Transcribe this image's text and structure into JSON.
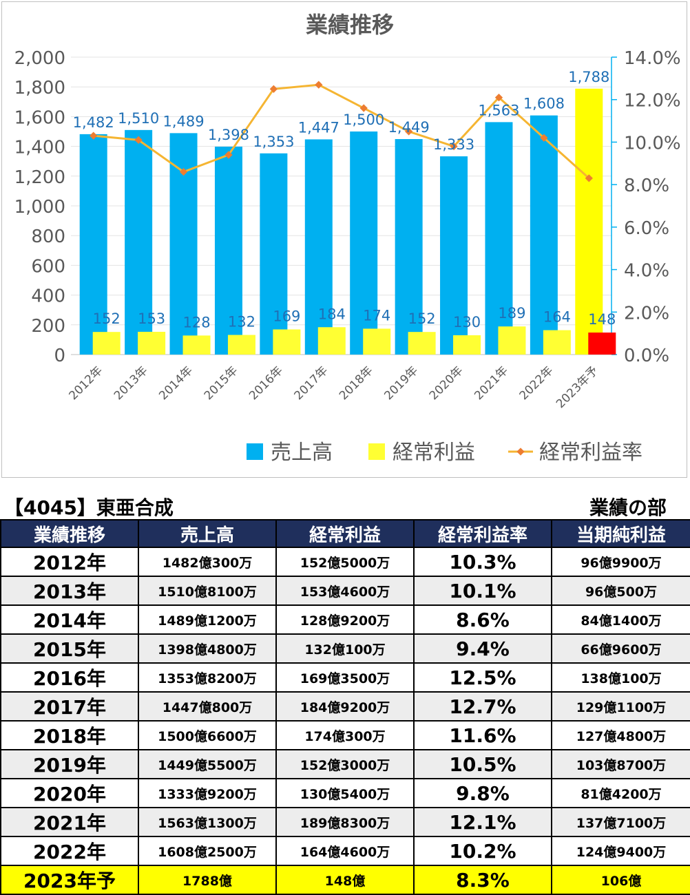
{
  "chart_data": {
    "type": "bar",
    "title": "業績推移",
    "categories": [
      "2012年",
      "2013年",
      "2014年",
      "2015年",
      "2016年",
      "2017年",
      "2018年",
      "2019年",
      "2020年",
      "2021年",
      "2022年",
      "2023年予"
    ],
    "series": [
      {
        "name": "売上高",
        "axis": "left",
        "color": "#00b0f0",
        "forecast_color": "#ffff00",
        "values": [
          1482,
          1510,
          1489,
          1398,
          1353,
          1447,
          1500,
          1449,
          1333,
          1563,
          1608,
          1788
        ],
        "labels": [
          "1,482",
          "1,510",
          "1,489",
          "1,398",
          "1,353",
          "1,447",
          "1,500",
          "1,449",
          "1,333",
          "1,563",
          "1,608",
          "1,788"
        ]
      },
      {
        "name": "経常利益",
        "axis": "left",
        "color": "#ffff33",
        "forecast_color": "#ff0000",
        "values": [
          152,
          153,
          128,
          132,
          169,
          184,
          174,
          152,
          130,
          189,
          164,
          148
        ],
        "labels": [
          "152",
          "153",
          "128",
          "132",
          "169",
          "184",
          "174",
          "152",
          "130",
          "189",
          "164",
          "148"
        ]
      },
      {
        "name": "経常利益率",
        "type": "line",
        "axis": "right",
        "color": "#f5b532",
        "marker_color": "#ed7d31",
        "values": [
          10.3,
          10.1,
          8.6,
          9.4,
          12.5,
          12.7,
          11.6,
          10.5,
          9.8,
          12.1,
          10.2,
          8.3
        ]
      }
    ],
    "ylim": [
      0,
      2000
    ],
    "y_ticks": [
      "0",
      "200",
      "400",
      "600",
      "800",
      "1,000",
      "1,200",
      "1,400",
      "1,600",
      "1,800",
      "2,000"
    ],
    "y2lim": [
      0,
      14
    ],
    "y2_ticks": [
      "0.0%",
      "2.0%",
      "4.0%",
      "6.0%",
      "8.0%",
      "10.0%",
      "12.0%",
      "14.0%"
    ],
    "grid": true,
    "legend_position": "bottom"
  },
  "table": {
    "company": "【4045】東亜合成",
    "section": "業績の部",
    "headers": [
      "業績推移",
      "売上高",
      "経常利益",
      "経常利益率",
      "当期純利益"
    ],
    "rows": [
      [
        "2012年",
        "1482億300万",
        "152億5000万",
        "10.3%",
        "96億9900万"
      ],
      [
        "2013年",
        "1510億8100万",
        "153億4600万",
        "10.1%",
        "96億500万"
      ],
      [
        "2014年",
        "1489億1200万",
        "128億9200万",
        "8.6%",
        "84億1400万"
      ],
      [
        "2015年",
        "1398億4800万",
        "132億100万",
        "9.4%",
        "66億9600万"
      ],
      [
        "2016年",
        "1353億8200万",
        "169億3500万",
        "12.5%",
        "138億100万"
      ],
      [
        "2017年",
        "1447億800万",
        "184億9200万",
        "12.7%",
        "129億1100万"
      ],
      [
        "2018年",
        "1500億6600万",
        "174億300万",
        "11.6%",
        "127億4800万"
      ],
      [
        "2019年",
        "1449億5500万",
        "152億3000万",
        "10.5%",
        "103億8700万"
      ],
      [
        "2020年",
        "1333億9200万",
        "130億5400万",
        "9.8%",
        "81億4200万"
      ],
      [
        "2021年",
        "1563億1300万",
        "189億8300万",
        "12.1%",
        "137億7100万"
      ],
      [
        "2022年",
        "1608億2500万",
        "164億4600万",
        "10.2%",
        "124億9400万"
      ],
      [
        "2023年予",
        "1788億",
        "148億",
        "8.3%",
        "106億"
      ]
    ]
  }
}
